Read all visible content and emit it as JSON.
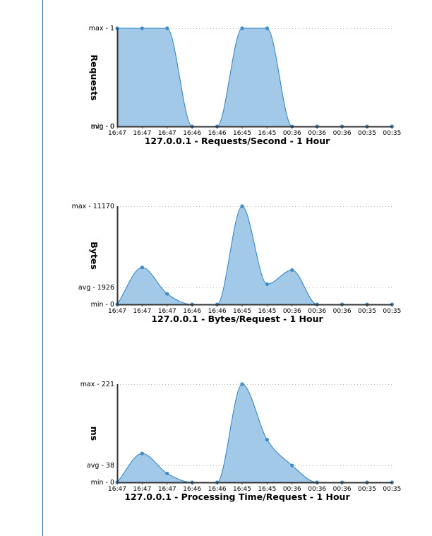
{
  "chart_data": [
    {
      "type": "area",
      "title": "127.0.0.1 - Requests/Second - 1 Hour",
      "ylabel": "Requests",
      "x": [
        "16:47",
        "16:47",
        "16:47",
        "16:46",
        "16:46",
        "16:45",
        "16:45",
        "00:36",
        "00:36",
        "00:36",
        "00:35",
        "00:35"
      ],
      "values": [
        1,
        1,
        1,
        0,
        0,
        1,
        1,
        0,
        0,
        0,
        0,
        0
      ],
      "ylim": [
        0,
        1
      ],
      "reference_lines": [
        {
          "label": "max - 1",
          "value": 1
        },
        {
          "label": "avg - 0",
          "value": 0
        },
        {
          "label": "min - 0",
          "value": 0
        }
      ],
      "grid": true,
      "colors": {
        "fill": "#a3c9e8",
        "line": "#2c7fc2",
        "marker": "#3d8dcd"
      }
    },
    {
      "type": "area",
      "title": "127.0.0.1 - Bytes/Request - 1 Hour",
      "ylabel": "Bytes",
      "x": [
        "16:47",
        "16:47",
        "16:47",
        "16:46",
        "16:46",
        "16:45",
        "16:45",
        "00:36",
        "00:36",
        "00:36",
        "00:35",
        "00:35"
      ],
      "values": [
        0,
        4200,
        1200,
        0,
        0,
        11170,
        2300,
        3900,
        0,
        0,
        0,
        0
      ],
      "ylim": [
        0,
        11170
      ],
      "reference_lines": [
        {
          "label": "max - 11170",
          "value": 11170
        },
        {
          "label": "avg - 1926",
          "value": 1926
        },
        {
          "label": "min - 0",
          "value": 0
        }
      ],
      "grid": true,
      "colors": {
        "fill": "#a3c9e8",
        "line": "#2c7fc2",
        "marker": "#3d8dcd"
      }
    },
    {
      "type": "area",
      "title": "127.0.0.1 - Processing Time/Request - 1 Hour",
      "ylabel": "ms",
      "x": [
        "16:47",
        "16:47",
        "16:47",
        "16:46",
        "16:46",
        "16:45",
        "16:45",
        "00:36",
        "00:36",
        "00:36",
        "00:35",
        "00:35"
      ],
      "values": [
        0,
        65,
        20,
        0,
        0,
        221,
        96,
        38,
        0,
        0,
        0,
        0
      ],
      "ylim": [
        0,
        221
      ],
      "reference_lines": [
        {
          "label": "max - 221",
          "value": 221
        },
        {
          "label": "avg - 38",
          "value": 38
        },
        {
          "label": "min - 0",
          "value": 0
        }
      ],
      "grid": true,
      "colors": {
        "fill": "#a3c9e8",
        "line": "#2c7fc2",
        "marker": "#3d8dcd"
      }
    }
  ]
}
